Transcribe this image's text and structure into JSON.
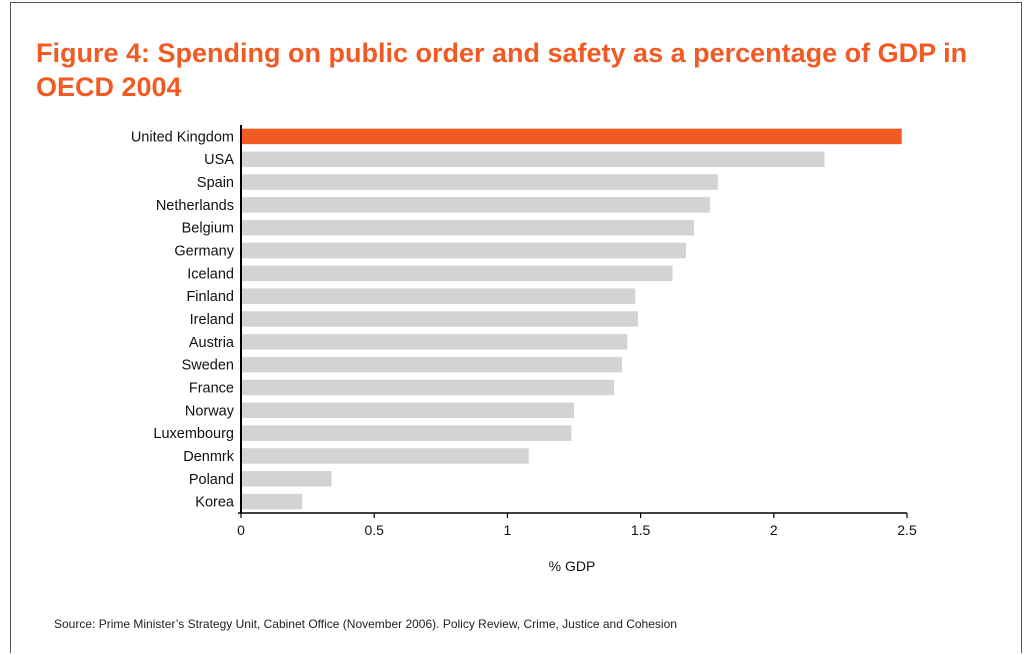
{
  "title": "Figure 4: Spending on public order and safety as a percentage of GDP in OECD 2004",
  "source": "Source: Prime Minister’s Strategy Unit, Cabinet Office (November 2006). Policy Review, Crime, Justice and Cohesion",
  "colors": {
    "highlight": "#f15a22",
    "bar": "#d3d3d3",
    "axis": "#000000",
    "title": "#f15a22"
  },
  "chart_data": {
    "type": "bar",
    "orientation": "horizontal",
    "title": "Figure 4: Spending on public order and safety as a percentage of GDP in OECD 2004",
    "xlabel": "% GDP",
    "ylabel": "",
    "xlim": [
      0,
      2.5
    ],
    "xticks": [
      0,
      0.5,
      1,
      1.5,
      2,
      2.5
    ],
    "xtick_labels": [
      "0",
      "0.5",
      "1",
      "1.5",
      "2",
      "2.5"
    ],
    "grid": false,
    "highlight_category": "United Kingdom",
    "categories": [
      "United Kingdom",
      "USA",
      "Spain",
      "Netherlands",
      "Belgium",
      "Germany",
      "Iceland",
      "Finland",
      "Ireland",
      "Austria",
      "Sweden",
      "France",
      "Norway",
      "Luxembourg",
      "Denmrk",
      "Poland",
      "Korea"
    ],
    "values": [
      2.48,
      2.19,
      1.79,
      1.76,
      1.7,
      1.67,
      1.62,
      1.48,
      1.49,
      1.45,
      1.43,
      1.4,
      1.25,
      1.24,
      1.08,
      0.34,
      0.23
    ]
  }
}
